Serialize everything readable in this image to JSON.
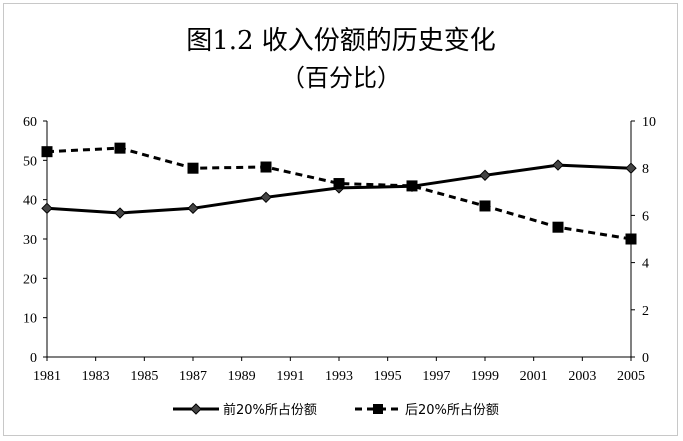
{
  "chart_data": {
    "type": "line",
    "title": "图1.2 收入份额的历史变化",
    "subtitle": "（百分比）",
    "x_ticks": [
      "1981",
      "1983",
      "1985",
      "1987",
      "1989",
      "1991",
      "1993",
      "1995",
      "1997",
      "1999",
      "2001",
      "2003",
      "2005"
    ],
    "xlim": [
      1981,
      2005
    ],
    "left_axis": {
      "ylim": [
        0,
        60
      ],
      "ticks": [
        "0",
        "10",
        "20",
        "30",
        "40",
        "50",
        "60"
      ]
    },
    "right_axis": {
      "ylim": [
        0,
        10
      ],
      "ticks": [
        "0",
        "2",
        "4",
        "6",
        "8",
        "10"
      ]
    },
    "grid": false,
    "legend_position": "bottom",
    "series": [
      {
        "name": "前20%所占份额",
        "axis": "left",
        "style": "solid",
        "marker": "diamond",
        "color": "#000000",
        "x": [
          1981,
          1984,
          1987,
          1990,
          1993,
          1996,
          1999,
          2002,
          2005
        ],
        "y": [
          37.8,
          36.6,
          37.8,
          40.6,
          43.0,
          43.4,
          46.2,
          48.8,
          48.0
        ]
      },
      {
        "name": "后20%所占份额",
        "axis": "right",
        "style": "dashed",
        "marker": "square",
        "color": "#000000",
        "x": [
          1981,
          1984,
          1987,
          1990,
          1993,
          1996,
          1999,
          2002,
          2005
        ],
        "y": [
          8.7,
          8.85,
          8.0,
          8.05,
          7.35,
          7.25,
          6.4,
          5.5,
          5.0
        ]
      }
    ]
  }
}
